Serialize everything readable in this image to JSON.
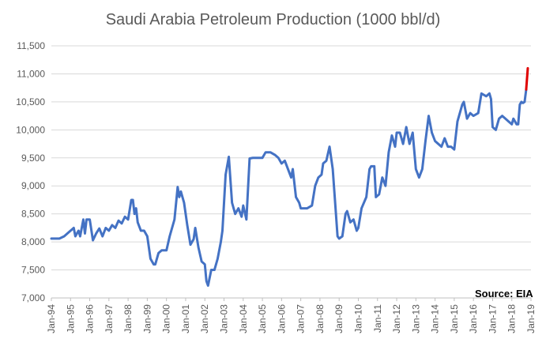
{
  "chart_data": {
    "type": "line",
    "title": "Saudi Arabia Petroleum Production (1000 bbl/d)",
    "xlabel": "",
    "ylabel": "",
    "ylim": [
      7000,
      11500
    ],
    "xlim": [
      "1994-01",
      "2019-01"
    ],
    "y_ticks": [
      "7,000",
      "7,500",
      "8,000",
      "8,500",
      "9,000",
      "9,500",
      "10,000",
      "10,500",
      "11,000",
      "11,500"
    ],
    "x_ticks": [
      "Jan-94",
      "Jan-95",
      "Jan-96",
      "Jan-97",
      "Jan-98",
      "Jan-99",
      "Jan-00",
      "Jan-01",
      "Jan-02",
      "Jan-03",
      "Jan-04",
      "Jan-05",
      "Jan-06",
      "Jan-07",
      "Jan-08",
      "Jan-09",
      "Jan-10",
      "Jan-11",
      "Jan-12",
      "Jan-13",
      "Jan-14",
      "Jan-15",
      "Jan-16",
      "Jan-17",
      "Jan-18",
      "Jan-19"
    ],
    "grid": "horizontal",
    "annotation": "Source: EIA",
    "series": [
      {
        "color": "#4472c4",
        "points": [
          [
            "1994-01",
            8060
          ],
          [
            "1994-06",
            8060
          ],
          [
            "1994-09",
            8100
          ],
          [
            "1995-01",
            8200
          ],
          [
            "1995-03",
            8250
          ],
          [
            "1995-04",
            8100
          ],
          [
            "1995-06",
            8200
          ],
          [
            "1995-07",
            8100
          ],
          [
            "1995-09",
            8400
          ],
          [
            "1995-10",
            8150
          ],
          [
            "1995-11",
            8400
          ],
          [
            "1996-01",
            8400
          ],
          [
            "1996-03",
            8030
          ],
          [
            "1996-05",
            8150
          ],
          [
            "1996-07",
            8240
          ],
          [
            "1996-09",
            8100
          ],
          [
            "1996-11",
            8250
          ],
          [
            "1997-01",
            8200
          ],
          [
            "1997-03",
            8300
          ],
          [
            "1997-05",
            8250
          ],
          [
            "1997-07",
            8380
          ],
          [
            "1997-09",
            8330
          ],
          [
            "1997-11",
            8450
          ],
          [
            "1998-01",
            8400
          ],
          [
            "1998-03",
            8750
          ],
          [
            "1998-04",
            8750
          ],
          [
            "1998-05",
            8500
          ],
          [
            "1998-06",
            8600
          ],
          [
            "1998-07",
            8350
          ],
          [
            "1998-09",
            8200
          ],
          [
            "1998-11",
            8200
          ],
          [
            "1999-01",
            8100
          ],
          [
            "1999-03",
            7700
          ],
          [
            "1999-05",
            7600
          ],
          [
            "1999-06",
            7600
          ],
          [
            "1999-08",
            7800
          ],
          [
            "1999-10",
            7850
          ],
          [
            "2000-01",
            7850
          ],
          [
            "2000-03",
            8100
          ],
          [
            "2000-06",
            8400
          ],
          [
            "2000-08",
            8980
          ],
          [
            "2000-09",
            8800
          ],
          [
            "2000-10",
            8900
          ],
          [
            "2000-12",
            8700
          ],
          [
            "2001-02",
            8300
          ],
          [
            "2001-04",
            7950
          ],
          [
            "2001-06",
            8050
          ],
          [
            "2001-07",
            8250
          ],
          [
            "2001-09",
            7900
          ],
          [
            "2001-11",
            7650
          ],
          [
            "2002-01",
            7600
          ],
          [
            "2002-02",
            7300
          ],
          [
            "2002-03",
            7220
          ],
          [
            "2002-05",
            7500
          ],
          [
            "2002-07",
            7500
          ],
          [
            "2002-09",
            7700
          ],
          [
            "2002-11",
            8000
          ],
          [
            "2002-12",
            8200
          ],
          [
            "2003-02",
            9200
          ],
          [
            "2003-04",
            9520
          ],
          [
            "2003-06",
            8700
          ],
          [
            "2003-08",
            8500
          ],
          [
            "2003-10",
            8600
          ],
          [
            "2003-12",
            8450
          ],
          [
            "2004-01",
            8650
          ],
          [
            "2004-03",
            8400
          ],
          [
            "2004-05",
            9490
          ],
          [
            "2004-07",
            9500
          ],
          [
            "2004-10",
            9500
          ],
          [
            "2005-01",
            9500
          ],
          [
            "2005-03",
            9600
          ],
          [
            "2005-06",
            9600
          ],
          [
            "2005-09",
            9550
          ],
          [
            "2005-11",
            9500
          ],
          [
            "2006-01",
            9400
          ],
          [
            "2006-03",
            9450
          ],
          [
            "2006-05",
            9300
          ],
          [
            "2006-07",
            9150
          ],
          [
            "2006-08",
            9300
          ],
          [
            "2006-10",
            8800
          ],
          [
            "2006-12",
            8700
          ],
          [
            "2007-01",
            8600
          ],
          [
            "2007-05",
            8600
          ],
          [
            "2007-08",
            8650
          ],
          [
            "2007-10",
            9000
          ],
          [
            "2007-12",
            9150
          ],
          [
            "2008-02",
            9200
          ],
          [
            "2008-03",
            9400
          ],
          [
            "2008-05",
            9450
          ],
          [
            "2008-07",
            9700
          ],
          [
            "2008-09",
            9300
          ],
          [
            "2008-10",
            8900
          ],
          [
            "2008-12",
            8100
          ],
          [
            "2009-01",
            8060
          ],
          [
            "2009-03",
            8100
          ],
          [
            "2009-05",
            8500
          ],
          [
            "2009-06",
            8550
          ],
          [
            "2009-08",
            8350
          ],
          [
            "2009-10",
            8400
          ],
          [
            "2009-12",
            8200
          ],
          [
            "2010-01",
            8250
          ],
          [
            "2010-03",
            8600
          ],
          [
            "2010-06",
            8800
          ],
          [
            "2010-08",
            9300
          ],
          [
            "2010-09",
            9350
          ],
          [
            "2010-11",
            9350
          ],
          [
            "2010-12",
            8800
          ],
          [
            "2011-02",
            8850
          ],
          [
            "2011-04",
            9150
          ],
          [
            "2011-06",
            9000
          ],
          [
            "2011-08",
            9600
          ],
          [
            "2011-10",
            9900
          ],
          [
            "2011-12",
            9700
          ],
          [
            "2012-01",
            9950
          ],
          [
            "2012-03",
            9950
          ],
          [
            "2012-05",
            9750
          ],
          [
            "2012-07",
            10050
          ],
          [
            "2012-09",
            9750
          ],
          [
            "2012-11",
            9950
          ],
          [
            "2013-01",
            9300
          ],
          [
            "2013-03",
            9150
          ],
          [
            "2013-05",
            9300
          ],
          [
            "2013-07",
            9800
          ],
          [
            "2013-09",
            10250
          ],
          [
            "2013-11",
            9950
          ],
          [
            "2014-01",
            9800
          ],
          [
            "2014-03",
            9750
          ],
          [
            "2014-05",
            9700
          ],
          [
            "2014-07",
            9850
          ],
          [
            "2014-09",
            9700
          ],
          [
            "2014-11",
            9700
          ],
          [
            "2015-01",
            9650
          ],
          [
            "2015-03",
            10150
          ],
          [
            "2015-06",
            10450
          ],
          [
            "2015-07",
            10500
          ],
          [
            "2015-09",
            10200
          ],
          [
            "2015-11",
            10300
          ],
          [
            "2016-01",
            10250
          ],
          [
            "2016-04",
            10300
          ],
          [
            "2016-06",
            10650
          ],
          [
            "2016-09",
            10600
          ],
          [
            "2016-11",
            10650
          ],
          [
            "2016-12",
            10550
          ],
          [
            "2017-01",
            10050
          ],
          [
            "2017-03",
            10000
          ],
          [
            "2017-05",
            10200
          ],
          [
            "2017-07",
            10250
          ],
          [
            "2017-09",
            10200
          ],
          [
            "2017-11",
            10150
          ],
          [
            "2018-01",
            10100
          ],
          [
            "2018-02",
            10200
          ],
          [
            "2018-04",
            10100
          ],
          [
            "2018-05",
            10100
          ],
          [
            "2018-06",
            10450
          ],
          [
            "2018-07",
            10500
          ],
          [
            "2018-08",
            10480
          ],
          [
            "2018-09",
            10500
          ],
          [
            "2018-10",
            10720
          ]
        ]
      },
      {
        "color": "#e00000",
        "points": [
          [
            "2018-10",
            10720
          ],
          [
            "2018-11",
            11100
          ]
        ]
      }
    ]
  }
}
